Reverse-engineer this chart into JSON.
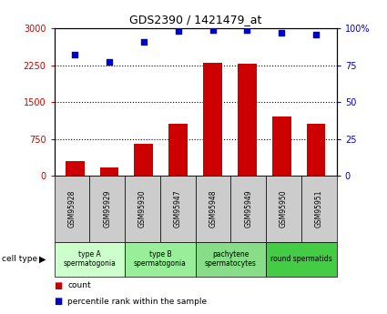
{
  "title": "GDS2390 / 1421479_at",
  "samples": [
    "GSM95928",
    "GSM95929",
    "GSM95930",
    "GSM95947",
    "GSM95948",
    "GSM95949",
    "GSM95950",
    "GSM95951"
  ],
  "counts": [
    300,
    175,
    650,
    1050,
    2300,
    2280,
    1200,
    1050
  ],
  "percentiles": [
    82,
    77,
    91,
    98,
    99,
    99,
    97,
    96
  ],
  "left_ylim": [
    0,
    3000
  ],
  "left_yticks": [
    0,
    750,
    1500,
    2250,
    3000
  ],
  "right_ylim": [
    0,
    100
  ],
  "right_yticks": [
    0,
    25,
    50,
    75,
    100
  ],
  "right_yticklabels": [
    "0",
    "25",
    "50",
    "75",
    "100%"
  ],
  "bar_color": "#cc0000",
  "scatter_color": "#0000cc",
  "left_tick_color": "#cc0000",
  "right_tick_color": "#0000cc",
  "cell_types": [
    {
      "label": "type A\nspermatogonia",
      "start": 0,
      "end": 2,
      "color": "#ccffcc"
    },
    {
      "label": "type B\nspermatogonia",
      "start": 2,
      "end": 4,
      "color": "#99ee99"
    },
    {
      "label": "pachytene\nspermatocytes",
      "start": 4,
      "end": 6,
      "color": "#88dd88"
    },
    {
      "label": "round spermatids",
      "start": 6,
      "end": 8,
      "color": "#44cc44"
    }
  ],
  "bg_color": "#ffffff",
  "plot_bg": "#ffffff",
  "grid_color": "#000000",
  "sample_box_color": "#cccccc",
  "legend_items": [
    {
      "color": "#cc0000",
      "label": "count"
    },
    {
      "color": "#0000cc",
      "label": "percentile rank within the sample"
    }
  ]
}
